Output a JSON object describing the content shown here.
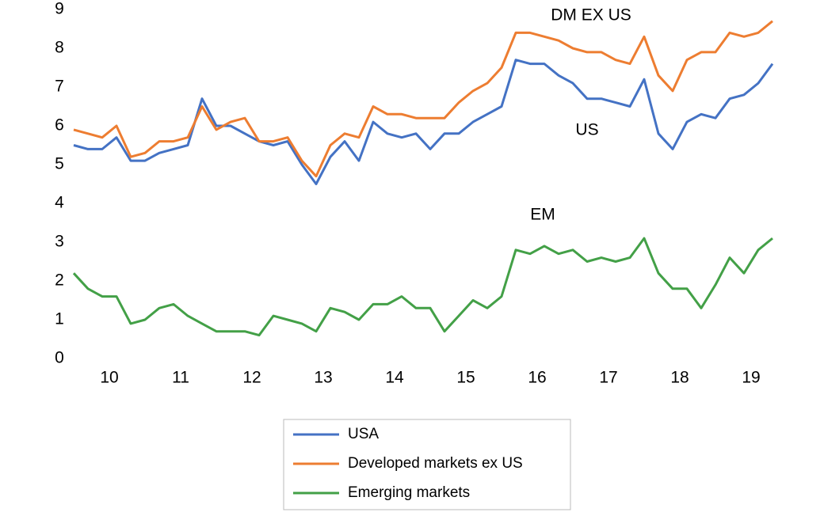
{
  "chart_data": {
    "type": "line",
    "x": [
      9.5,
      9.7,
      9.9,
      10.1,
      10.3,
      10.5,
      10.7,
      10.9,
      11.1,
      11.3,
      11.5,
      11.7,
      11.9,
      12.1,
      12.3,
      12.5,
      12.7,
      12.9,
      13.1,
      13.3,
      13.5,
      13.7,
      13.9,
      14.1,
      14.3,
      14.5,
      14.7,
      14.9,
      15.1,
      15.3,
      15.5,
      15.7,
      15.9,
      16.1,
      16.3,
      16.5,
      16.7,
      16.9,
      17.1,
      17.3,
      17.5,
      17.7,
      17.9,
      18.1,
      18.3,
      18.5,
      18.7,
      18.9,
      19.1,
      19.3
    ],
    "series": [
      {
        "name": "USA",
        "color": "#4472c4",
        "values": [
          5.5,
          5.4,
          5.4,
          5.7,
          5.1,
          5.1,
          5.3,
          5.4,
          5.5,
          6.7,
          6.0,
          6.0,
          5.8,
          5.6,
          5.5,
          5.6,
          5.0,
          4.5,
          5.2,
          5.6,
          5.1,
          6.1,
          5.8,
          5.7,
          5.8,
          5.4,
          5.8,
          5.8,
          6.1,
          6.3,
          6.5,
          7.7,
          7.6,
          7.6,
          7.3,
          7.1,
          6.7,
          6.7,
          6.6,
          6.5,
          7.2,
          5.8,
          5.4,
          6.1,
          6.3,
          6.2,
          6.7,
          6.8,
          7.1,
          7.6
        ]
      },
      {
        "name": "Developed markets ex US",
        "color": "#ed7d31",
        "values": [
          5.9,
          5.8,
          5.7,
          6.0,
          5.2,
          5.3,
          5.6,
          5.6,
          5.7,
          6.5,
          5.9,
          6.1,
          6.2,
          5.6,
          5.6,
          5.7,
          5.1,
          4.7,
          5.5,
          5.8,
          5.7,
          6.5,
          6.3,
          6.3,
          6.2,
          6.2,
          6.2,
          6.6,
          6.9,
          7.1,
          7.5,
          8.4,
          8.4,
          8.3,
          8.2,
          8.0,
          7.9,
          7.9,
          7.7,
          7.6,
          8.3,
          7.3,
          6.9,
          7.7,
          7.9,
          7.9,
          8.4,
          8.3,
          8.4,
          8.7
        ]
      },
      {
        "name": "Emerging markets",
        "color": "#43a047",
        "values": [
          2.2,
          1.8,
          1.6,
          1.6,
          0.9,
          1.0,
          1.3,
          1.4,
          1.1,
          0.9,
          0.7,
          0.7,
          0.7,
          0.6,
          1.1,
          1.0,
          0.9,
          0.7,
          1.3,
          1.2,
          1.0,
          1.4,
          1.4,
          1.6,
          1.3,
          1.3,
          0.7,
          1.1,
          1.5,
          1.3,
          1.6,
          2.8,
          2.7,
          2.9,
          2.7,
          2.8,
          2.5,
          2.6,
          2.5,
          2.6,
          3.1,
          2.2,
          1.8,
          1.8,
          1.3,
          1.9,
          2.6,
          2.2,
          2.8,
          3.1
        ]
      }
    ],
    "annotations": [
      "DM EX US",
      "US",
      "EM"
    ],
    "xlim": [
      9.5,
      19.3
    ],
    "xticks": [
      10,
      11,
      12,
      13,
      14,
      15,
      16,
      17,
      18,
      19
    ],
    "ylim": [
      0,
      9
    ],
    "yticks": [
      0,
      1,
      2,
      3,
      4,
      5,
      6,
      7,
      8,
      9
    ],
    "grid": false,
    "legend": "bottom"
  }
}
